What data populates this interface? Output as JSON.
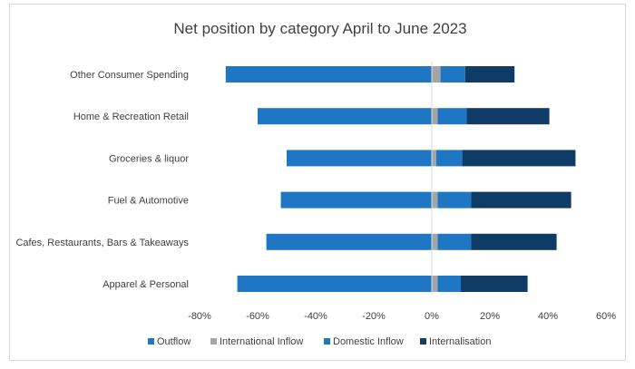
{
  "chart_data": {
    "type": "bar",
    "orientation": "horizontal",
    "stacked": true,
    "title": "Net position by category April to June 2023",
    "categories": [
      "Other Consumer Spending",
      "Home & Recreation Retail",
      "Groceries & liquor",
      "Fuel & Automotive",
      "Cafes, Restaurants, Bars & Takeaways",
      "Apparel & Personal"
    ],
    "series": [
      {
        "name": "Outflow",
        "color": "#1f77c4",
        "values": [
          -71,
          -60,
          -50,
          -52,
          -57,
          -67
        ]
      },
      {
        "name": "International Inflow",
        "color": "#a5a5a5",
        "values": [
          3,
          2,
          1.5,
          2,
          2,
          2
        ]
      },
      {
        "name": "Domestic Inflow",
        "color": "#1f77c4",
        "values": [
          8.5,
          10,
          9,
          11.5,
          11.5,
          8
        ]
      },
      {
        "name": "Internalisation",
        "color": "#0e3c66",
        "values": [
          17,
          28.5,
          39,
          34.5,
          29.5,
          23
        ]
      }
    ],
    "xlim": [
      -80,
      60
    ],
    "xticks": [
      "-80%",
      "-60%",
      "-40%",
      "-20%",
      "0%",
      "20%",
      "40%",
      "60%"
    ],
    "grid": false,
    "legend_position": "bottom"
  }
}
